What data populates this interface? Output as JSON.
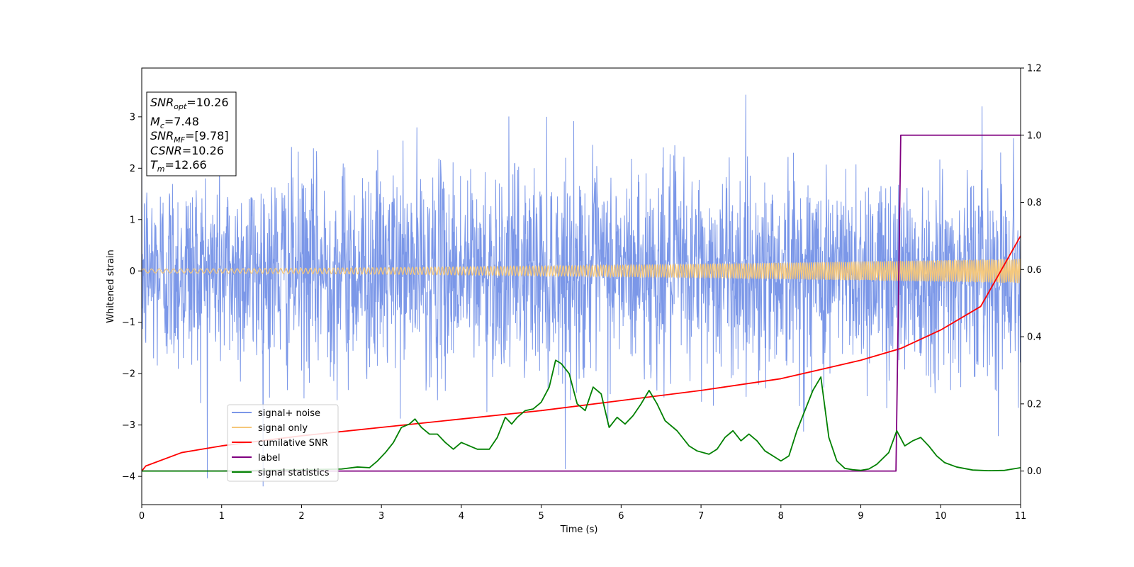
{
  "chart_data": {
    "type": "line",
    "xlabel": "Time (s)",
    "ylabel": "Whitened strain",
    "xlim": [
      0,
      11
    ],
    "ylim_left": [
      -4.55,
      3.95
    ],
    "ylim_right": [
      -0.1,
      1.2
    ],
    "x_ticks": [
      0,
      1,
      2,
      3,
      4,
      5,
      6,
      7,
      8,
      9,
      10,
      11
    ],
    "y_ticks_left": [
      -4,
      -3,
      -2,
      -1,
      0,
      1,
      2,
      3
    ],
    "y_ticks_right": [
      "0.0",
      "0.2",
      "0.4",
      "0.6",
      "0.8",
      "1.0",
      "1.2"
    ],
    "grid": false,
    "legend_position": "lower-left",
    "annotation": {
      "snr_opt": "10.26",
      "mc": "7.48",
      "snr_mf": "[9.78]",
      "csnr": "10.26",
      "tm": "12.66"
    },
    "series": [
      {
        "name": "signal+ noise",
        "axis": "left",
        "color": "#7b97e8",
        "description": "white noise, amplitude ~±1.5, peaks to about +3.6 / -4.2, spanning 0–11 s",
        "amplitude_rms": 1.0
      },
      {
        "name": "signal only",
        "axis": "left",
        "color": "#f5c77a",
        "description": "chirp oscillation, amplitude grows from ~0.04 at t=0 to ~0.24 at t=11",
        "amplitude_start": 0.04,
        "amplitude_end": 0.24
      },
      {
        "name": "cumilative SNR",
        "axis": "right",
        "color": "#ff0000",
        "x": [
          0,
          0.05,
          0.5,
          1,
          2,
          3,
          4,
          5,
          6,
          7,
          8,
          9,
          9.5,
          10,
          10.5,
          11
        ],
        "y": [
          0.0,
          0.015,
          0.055,
          0.075,
          0.105,
          0.13,
          0.155,
          0.18,
          0.21,
          0.24,
          0.275,
          0.33,
          0.365,
          0.42,
          0.49,
          0.7
        ]
      },
      {
        "name": "label",
        "axis": "right",
        "color": "#800080",
        "x": [
          0,
          9.44,
          9.5,
          11
        ],
        "y": [
          0.0,
          0.0,
          1.0,
          1.0
        ]
      },
      {
        "name": "signal statistics",
        "axis": "right",
        "color": "#008000",
        "x": [
          0,
          0.5,
          1,
          1.5,
          2,
          2.5,
          2.7,
          2.85,
          2.95,
          3.05,
          3.15,
          3.25,
          3.35,
          3.42,
          3.5,
          3.6,
          3.7,
          3.8,
          3.9,
          4.0,
          4.1,
          4.2,
          4.35,
          4.45,
          4.55,
          4.63,
          4.7,
          4.8,
          4.9,
          5.0,
          5.1,
          5.18,
          5.25,
          5.35,
          5.45,
          5.55,
          5.65,
          5.75,
          5.85,
          5.95,
          6.05,
          6.15,
          6.25,
          6.35,
          6.45,
          6.55,
          6.7,
          6.85,
          6.95,
          7.1,
          7.2,
          7.3,
          7.4,
          7.5,
          7.6,
          7.7,
          7.8,
          7.9,
          8.0,
          8.1,
          8.2,
          8.3,
          8.4,
          8.5,
          8.6,
          8.7,
          8.8,
          8.9,
          9.0,
          9.1,
          9.2,
          9.35,
          9.45,
          9.55,
          9.65,
          9.75,
          9.85,
          9.95,
          10.05,
          10.2,
          10.4,
          10.6,
          10.8,
          11.0
        ],
        "y": [
          0.0,
          0.0,
          0.0,
          0.002,
          0.004,
          0.006,
          0.012,
          0.01,
          0.03,
          0.055,
          0.085,
          0.13,
          0.14,
          0.155,
          0.13,
          0.11,
          0.11,
          0.085,
          0.065,
          0.085,
          0.075,
          0.065,
          0.065,
          0.1,
          0.16,
          0.14,
          0.16,
          0.18,
          0.185,
          0.205,
          0.25,
          0.33,
          0.32,
          0.29,
          0.2,
          0.18,
          0.25,
          0.23,
          0.13,
          0.16,
          0.14,
          0.165,
          0.2,
          0.24,
          0.2,
          0.15,
          0.12,
          0.075,
          0.06,
          0.05,
          0.065,
          0.1,
          0.12,
          0.09,
          0.11,
          0.09,
          0.06,
          0.045,
          0.03,
          0.045,
          0.12,
          0.18,
          0.24,
          0.28,
          0.1,
          0.03,
          0.008,
          0.004,
          0.002,
          0.006,
          0.02,
          0.055,
          0.12,
          0.075,
          0.09,
          0.1,
          0.075,
          0.045,
          0.025,
          0.012,
          0.003,
          0.001,
          0.002,
          0.01
        ]
      }
    ]
  }
}
